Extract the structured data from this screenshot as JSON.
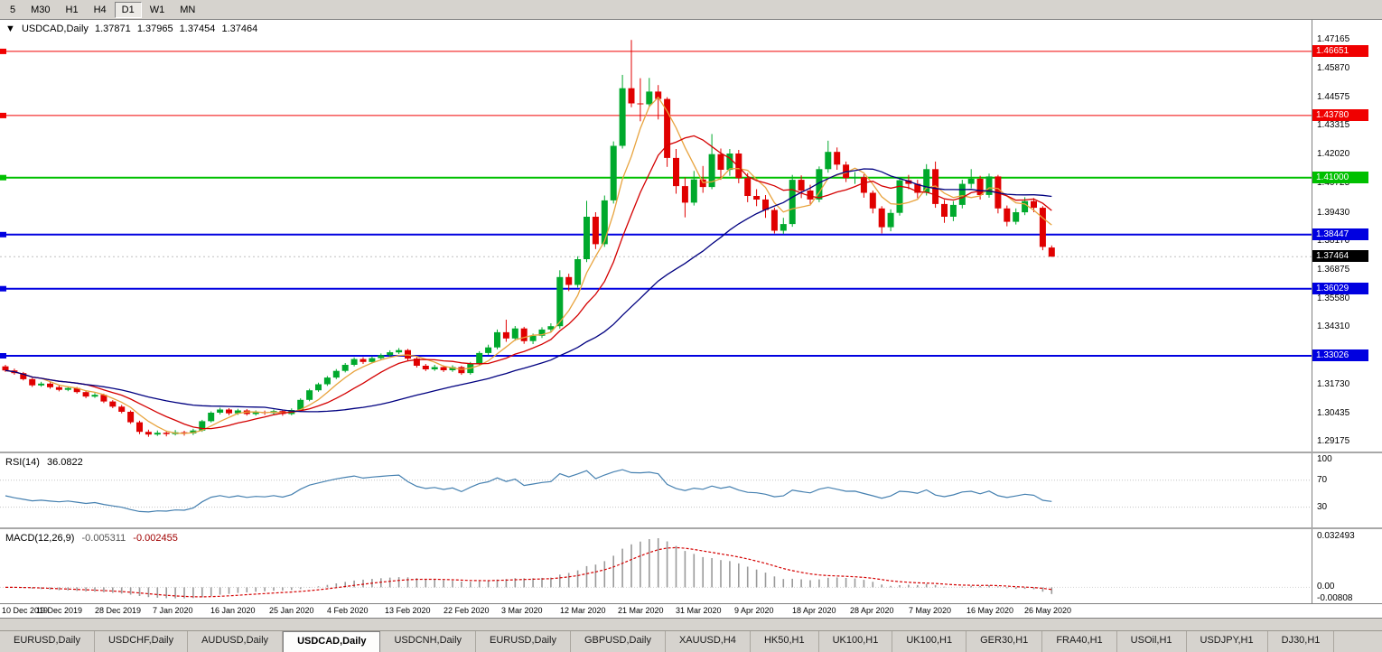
{
  "icons": {
    "chart_menu": "▼"
  },
  "toolbar": {
    "timeframes": [
      {
        "label": "5",
        "active": false
      },
      {
        "label": "M30",
        "active": false
      },
      {
        "label": "H1",
        "active": false
      },
      {
        "label": "H4",
        "active": false
      },
      {
        "label": "D1",
        "active": true
      },
      {
        "label": "W1",
        "active": false
      },
      {
        "label": "MN",
        "active": false
      }
    ]
  },
  "chart_data": [
    {
      "type": "candlestick",
      "symbol": "USDCAD,Daily",
      "ohlc_display": {
        "open": "1.37871",
        "high": "1.37965",
        "low": "1.37454",
        "close": "1.37464"
      },
      "ylim": [
        1.2874,
        1.4806
      ],
      "colors": {
        "bull": "#00a92c",
        "bear": "#e00000"
      },
      "y_ticks": [
        "1.47165",
        "1.45870",
        "1.44575",
        "1.43315",
        "1.42020",
        "1.40725",
        "1.39430",
        "1.38170",
        "1.36875",
        "1.35580",
        "1.34310",
        "1.33015",
        "1.31730",
        "1.30435",
        "1.29175"
      ],
      "x_labels": [
        "10 Dec 2019",
        "19 Dec 2019",
        "28 Dec 2019",
        "7 Jan 2020",
        "16 Jan 2020",
        "25 Jan 2020",
        "4 Feb 2020",
        "13 Feb 2020",
        "22 Feb 2020",
        "3 Mar 2020",
        "12 Mar 2020",
        "21 Mar 2020",
        "31 Mar 2020",
        "9 Apr 2020",
        "18 Apr 2020",
        "28 Apr 2020",
        "7 May 2020",
        "16 May 2020",
        "26 May 2020"
      ],
      "h_lines": [
        {
          "label": "1.46651",
          "price": 1.46651,
          "color": "#f00000",
          "width": 1
        },
        {
          "label": "1.43780",
          "price": 1.4378,
          "color": "#f00000",
          "width": 1
        },
        {
          "label": "1.41000",
          "price": 1.41,
          "color": "#00c000",
          "width": 2
        },
        {
          "label": "1.38447",
          "price": 1.38447,
          "color": "#0000e0",
          "width": 2
        },
        {
          "label": "1.36029",
          "price": 1.36029,
          "color": "#0000e0",
          "width": 2
        },
        {
          "label": "1.33026",
          "price": 1.33026,
          "color": "#0000e0",
          "width": 2
        }
      ],
      "current_price": {
        "label": "1.37464",
        "value": 1.37464,
        "badge_color": "#000000"
      },
      "moving_averages": [
        {
          "period": 5,
          "color": "#e8a33d"
        },
        {
          "period": 10,
          "color": "#d40000"
        },
        {
          "period": 30,
          "color": "#000080"
        }
      ],
      "candles": [
        [
          1.3255,
          1.3262,
          1.323,
          1.3237
        ],
        [
          1.3237,
          1.3245,
          1.3218,
          1.3225
        ],
        [
          1.3225,
          1.323,
          1.3192,
          1.3198
        ],
        [
          1.3198,
          1.3204,
          1.3163,
          1.317
        ],
        [
          1.317,
          1.3186,
          1.3164,
          1.3178
        ],
        [
          1.3178,
          1.3184,
          1.3155,
          1.3162
        ],
        [
          1.3162,
          1.317,
          1.3143,
          1.315
        ],
        [
          1.315,
          1.3166,
          1.3144,
          1.3158
        ],
        [
          1.3158,
          1.3163,
          1.3133,
          1.314
        ],
        [
          1.314,
          1.3147,
          1.3113,
          1.312
        ],
        [
          1.312,
          1.3136,
          1.3114,
          1.3128
        ],
        [
          1.3128,
          1.3133,
          1.3091,
          1.3098
        ],
        [
          1.3098,
          1.3104,
          1.3068,
          1.3075
        ],
        [
          1.3075,
          1.3082,
          1.3045,
          1.3052
        ],
        [
          1.3052,
          1.3058,
          1.2998,
          1.3005
        ],
        [
          1.3005,
          1.3012,
          1.2952,
          1.2962
        ],
        [
          1.2962,
          1.2972,
          1.294,
          1.295
        ],
        [
          1.295,
          1.2968,
          1.2944,
          1.2958
        ],
        [
          1.2958,
          1.2966,
          1.2942,
          1.2952
        ],
        [
          1.2952,
          1.297,
          1.2946,
          1.296
        ],
        [
          1.296,
          1.2967,
          1.2945,
          1.2955
        ],
        [
          1.2955,
          1.2976,
          1.2948,
          1.2968
        ],
        [
          1.2968,
          1.3016,
          1.2962,
          1.301
        ],
        [
          1.301,
          1.3054,
          1.3004,
          1.3048
        ],
        [
          1.3048,
          1.307,
          1.304,
          1.3062
        ],
        [
          1.3062,
          1.3068,
          1.3037,
          1.3045
        ],
        [
          1.3045,
          1.3065,
          1.3038,
          1.3058
        ],
        [
          1.3058,
          1.3064,
          1.3035,
          1.3042
        ],
        [
          1.3042,
          1.3058,
          1.3035,
          1.305
        ],
        [
          1.305,
          1.3057,
          1.3038,
          1.3046
        ],
        [
          1.3046,
          1.3062,
          1.3039,
          1.3055
        ],
        [
          1.3055,
          1.3061,
          1.3034,
          1.3042
        ],
        [
          1.3042,
          1.3067,
          1.3036,
          1.306
        ],
        [
          1.306,
          1.3112,
          1.3054,
          1.3105
        ],
        [
          1.3105,
          1.3155,
          1.3099,
          1.3148
        ],
        [
          1.3148,
          1.3182,
          1.3141,
          1.3175
        ],
        [
          1.3175,
          1.3212,
          1.3168,
          1.3205
        ],
        [
          1.3205,
          1.3243,
          1.3198,
          1.3235
        ],
        [
          1.3235,
          1.327,
          1.3228,
          1.3262
        ],
        [
          1.3262,
          1.3295,
          1.3255,
          1.3288
        ],
        [
          1.3288,
          1.3296,
          1.3266,
          1.3275
        ],
        [
          1.3275,
          1.33,
          1.3268,
          1.3292
        ],
        [
          1.3292,
          1.3313,
          1.3285,
          1.3305
        ],
        [
          1.3305,
          1.3327,
          1.3298,
          1.3318
        ],
        [
          1.3318,
          1.3337,
          1.331,
          1.3328
        ],
        [
          1.3328,
          1.3333,
          1.3281,
          1.329
        ],
        [
          1.329,
          1.3296,
          1.325,
          1.3258
        ],
        [
          1.3258,
          1.3266,
          1.3234,
          1.3242
        ],
        [
          1.3242,
          1.3262,
          1.3235,
          1.3252
        ],
        [
          1.3252,
          1.3259,
          1.323,
          1.3238
        ],
        [
          1.3238,
          1.326,
          1.3231,
          1.3252
        ],
        [
          1.3252,
          1.3258,
          1.3217,
          1.3225
        ],
        [
          1.3225,
          1.3275,
          1.3218,
          1.3268
        ],
        [
          1.3268,
          1.3323,
          1.3261,
          1.3315
        ],
        [
          1.3315,
          1.3352,
          1.3306,
          1.334
        ],
        [
          1.334,
          1.342,
          1.3332,
          1.3408
        ],
        [
          1.3408,
          1.3464,
          1.3365,
          1.338
        ],
        [
          1.338,
          1.3436,
          1.337,
          1.3425
        ],
        [
          1.3425,
          1.3432,
          1.3356,
          1.3368
        ],
        [
          1.3368,
          1.3402,
          1.3355,
          1.3392
        ],
        [
          1.3392,
          1.343,
          1.3382,
          1.342
        ],
        [
          1.342,
          1.3448,
          1.3408,
          1.3435
        ],
        [
          1.3435,
          1.3685,
          1.3424,
          1.3655
        ],
        [
          1.3655,
          1.367,
          1.3592,
          1.362
        ],
        [
          1.362,
          1.3748,
          1.3608,
          1.3735
        ],
        [
          1.3735,
          1.3996,
          1.3722,
          1.3925
        ],
        [
          1.3925,
          1.3945,
          1.378,
          1.3802
        ],
        [
          1.3802,
          1.402,
          1.379,
          1.3998
        ],
        [
          1.3998,
          1.4262,
          1.3984,
          1.4242
        ],
        [
          1.4242,
          1.456,
          1.423,
          1.45
        ],
        [
          1.45,
          1.4716,
          1.4415,
          1.4432
        ],
        [
          1.4432,
          1.4545,
          1.4352,
          1.4428
        ],
        [
          1.4428,
          1.4546,
          1.4418,
          1.4485
        ],
        [
          1.4485,
          1.4514,
          1.436,
          1.4452
        ],
        [
          1.4452,
          1.446,
          1.4148,
          1.4188
        ],
        [
          1.4188,
          1.4228,
          1.4028,
          1.4062
        ],
        [
          1.4062,
          1.41,
          1.3922,
          1.3988
        ],
        [
          1.3988,
          1.413,
          1.3975,
          1.4092
        ],
        [
          1.4092,
          1.4152,
          1.4032,
          1.4058
        ],
        [
          1.4058,
          1.4295,
          1.4048,
          1.4205
        ],
        [
          1.4205,
          1.423,
          1.409,
          1.4135
        ],
        [
          1.4135,
          1.4228,
          1.4108,
          1.4208
        ],
        [
          1.4208,
          1.4224,
          1.4075,
          1.4098
        ],
        [
          1.4098,
          1.412,
          1.399,
          1.4018
        ],
        [
          1.4018,
          1.4048,
          1.3972,
          1.4002
        ],
        [
          1.4002,
          1.4022,
          1.392,
          1.3955
        ],
        [
          1.3955,
          1.3966,
          1.385,
          1.3862
        ],
        [
          1.3862,
          1.392,
          1.3848,
          1.3892
        ],
        [
          1.3892,
          1.4112,
          1.388,
          1.409
        ],
        [
          1.409,
          1.411,
          1.4008,
          1.4042
        ],
        [
          1.4042,
          1.4068,
          1.3982,
          1.4002
        ],
        [
          1.4002,
          1.415,
          1.399,
          1.4138
        ],
        [
          1.4138,
          1.4265,
          1.4122,
          1.4215
        ],
        [
          1.4215,
          1.4235,
          1.4135,
          1.4158
        ],
        [
          1.4158,
          1.4172,
          1.408,
          1.4098
        ],
        [
          1.4098,
          1.4125,
          1.4072,
          1.4102
        ],
        [
          1.4102,
          1.4115,
          1.401,
          1.4032
        ],
        [
          1.4032,
          1.4042,
          1.394,
          1.3962
        ],
        [
          1.3962,
          1.3972,
          1.385,
          1.3878
        ],
        [
          1.3878,
          1.3958,
          1.386,
          1.3942
        ],
        [
          1.3942,
          1.4102,
          1.393,
          1.4088
        ],
        [
          1.4088,
          1.4112,
          1.4048,
          1.4072
        ],
        [
          1.4072,
          1.409,
          1.4008,
          1.4032
        ],
        [
          1.4032,
          1.416,
          1.402,
          1.4138
        ],
        [
          1.4138,
          1.4172,
          1.3965,
          1.3982
        ],
        [
          1.3982,
          1.4,
          1.3898,
          1.3925
        ],
        [
          1.3925,
          1.3995,
          1.3905,
          1.3978
        ],
        [
          1.3978,
          1.409,
          1.3962,
          1.4072
        ],
        [
          1.4072,
          1.4138,
          1.4052,
          1.4095
        ],
        [
          1.4095,
          1.4108,
          1.4002,
          1.4022
        ],
        [
          1.4022,
          1.4118,
          1.401,
          1.4105
        ],
        [
          1.4105,
          1.4112,
          1.394,
          1.3962
        ],
        [
          1.3962,
          1.3975,
          1.3882,
          1.3902
        ],
        [
          1.3902,
          1.3962,
          1.389,
          1.3945
        ],
        [
          1.3945,
          1.4012,
          1.3932,
          1.3995
        ],
        [
          1.3995,
          1.4008,
          1.3945,
          1.3965
        ],
        [
          1.3965,
          1.3972,
          1.3775,
          1.379
        ],
        [
          1.37871,
          1.37965,
          1.37454,
          1.37464
        ]
      ]
    },
    {
      "type": "line",
      "name": "RSI",
      "label": "RSI(14)",
      "value": "36.0822",
      "period": 14,
      "color": "#4580b0",
      "levels": [
        70,
        30
      ],
      "axis": [
        {
          "label": "100",
          "value": 100
        },
        {
          "label": "70",
          "value": 70
        },
        {
          "label": "30",
          "value": 30
        }
      ],
      "ylim": [
        0,
        110
      ]
    },
    {
      "type": "bar",
      "name": "MACD",
      "label": "MACD(12,26,9)",
      "value_main": "-0.005311",
      "value_signal": "-0.002455",
      "params": [
        12,
        26,
        9
      ],
      "colors": {
        "histogram": "#9a9a9a",
        "signal": "#d40000"
      },
      "axis": [
        {
          "label": "0.032493",
          "value": 0.032493
        },
        {
          "label": "0.00",
          "value": 0
        },
        {
          "label": "-0.00808",
          "value": -0.00808
        }
      ],
      "ylim": [
        -0.0101,
        0.037
      ]
    }
  ],
  "tabs": [
    {
      "label": "EURUSD,Daily",
      "active": false
    },
    {
      "label": "USDCHF,Daily",
      "active": false
    },
    {
      "label": "AUDUSD,Daily",
      "active": false
    },
    {
      "label": "USDCAD,Daily",
      "active": true
    },
    {
      "label": "USDCNH,Daily",
      "active": false
    },
    {
      "label": "EURUSD,Daily",
      "active": false
    },
    {
      "label": "GBPUSD,Daily",
      "active": false
    },
    {
      "label": "XAUUSD,H4",
      "active": false
    },
    {
      "label": "HK50,H1",
      "active": false
    },
    {
      "label": "UK100,H1",
      "active": false
    },
    {
      "label": "UK100,H1",
      "active": false
    },
    {
      "label": "GER30,H1",
      "active": false
    },
    {
      "label": "FRA40,H1",
      "active": false
    },
    {
      "label": "USOil,H1",
      "active": false
    },
    {
      "label": "USDJPY,H1",
      "active": false
    },
    {
      "label": "DJ30,H1",
      "active": false
    }
  ]
}
